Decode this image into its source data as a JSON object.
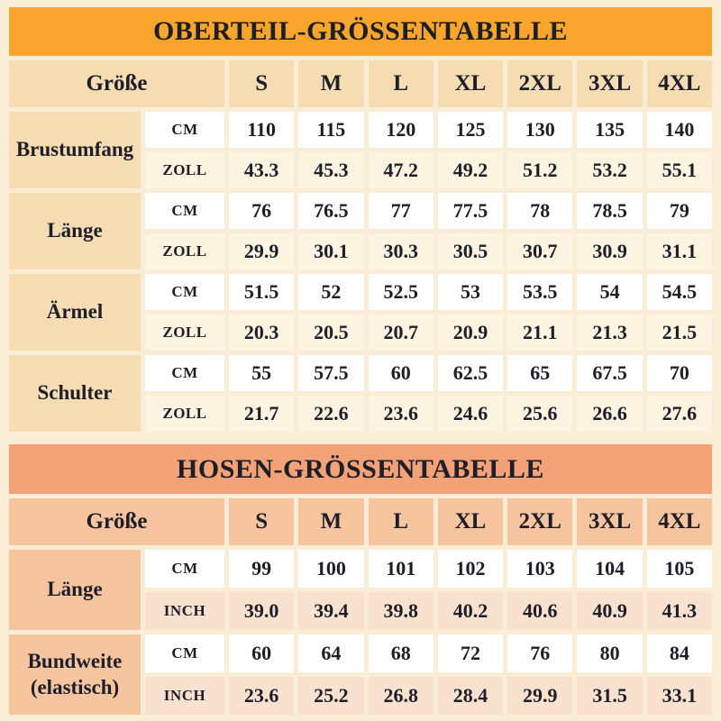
{
  "theme": {
    "c-page": "#F9EDD6",
    "c-text": "#1E1E28",
    "c-white": "#FFFFFF",
    "c-t1-header": "#F7A52D",
    "c-t1-label": "#F5DCB2",
    "c-t1-alt": "#FCF3E0",
    "c-t2-header": "#F2A276",
    "c-t2-label": "#F6C5A0",
    "c-t2-alt": "#F9E1D0"
  },
  "chart_data": [
    {
      "type": "table",
      "title": "OBERTEIL-GRÖSSENTABELLE",
      "size_header": "Größe",
      "sizes": [
        "S",
        "M",
        "L",
        "XL",
        "2XL",
        "3XL",
        "4XL"
      ],
      "rows": [
        {
          "label": "Brustumfang",
          "row1_unit": "CM",
          "row1_values": [
            "110",
            "115",
            "120",
            "125",
            "130",
            "135",
            "140"
          ],
          "row2_unit": "ZOLL",
          "row2_values": [
            "43.3",
            "45.3",
            "47.2",
            "49.2",
            "51.2",
            "53.2",
            "55.1"
          ]
        },
        {
          "label": "Länge",
          "row1_unit": "CM",
          "row1_values": [
            "76",
            "76.5",
            "77",
            "77.5",
            "78",
            "78.5",
            "79"
          ],
          "row2_unit": "ZOLL",
          "row2_values": [
            "29.9",
            "30.1",
            "30.3",
            "30.5",
            "30.7",
            "30.9",
            "31.1"
          ]
        },
        {
          "label": "Ärmel",
          "row1_unit": "CM",
          "row1_values": [
            "51.5",
            "52",
            "52.5",
            "53",
            "53.5",
            "54",
            "54.5"
          ],
          "row2_unit": "ZOLL",
          "row2_values": [
            "20.3",
            "20.5",
            "20.7",
            "20.9",
            "21.1",
            "21.3",
            "21.5"
          ]
        },
        {
          "label": "Schulter",
          "row1_unit": "CM",
          "row1_values": [
            "55",
            "57.5",
            "60",
            "62.5",
            "65",
            "67.5",
            "70"
          ],
          "row2_unit": "ZOLL",
          "row2_values": [
            "21.7",
            "22.6",
            "23.6",
            "24.6",
            "25.6",
            "26.6",
            "27.6"
          ]
        }
      ]
    },
    {
      "type": "table",
      "title": "HOSEN-GRÖSSENTABELLE",
      "size_header": "Größe",
      "sizes": [
        "S",
        "M",
        "L",
        "XL",
        "2XL",
        "3XL",
        "4XL"
      ],
      "rows": [
        {
          "label": "Länge",
          "row1_unit": "CM",
          "row1_values": [
            "99",
            "100",
            "101",
            "102",
            "103",
            "104",
            "105"
          ],
          "row2_unit": "INCH",
          "row2_values": [
            "39.0",
            "39.4",
            "39.8",
            "40.2",
            "40.6",
            "40.9",
            "41.3"
          ]
        },
        {
          "label": "Bundweite (elastisch)",
          "row1_unit": "CM",
          "row1_values": [
            "60",
            "64",
            "68",
            "72",
            "76",
            "80",
            "84"
          ],
          "row2_unit": "INCH",
          "row2_values": [
            "23.6",
            "25.2",
            "26.8",
            "28.4",
            "29.9",
            "31.5",
            "33.1"
          ]
        }
      ]
    }
  ]
}
